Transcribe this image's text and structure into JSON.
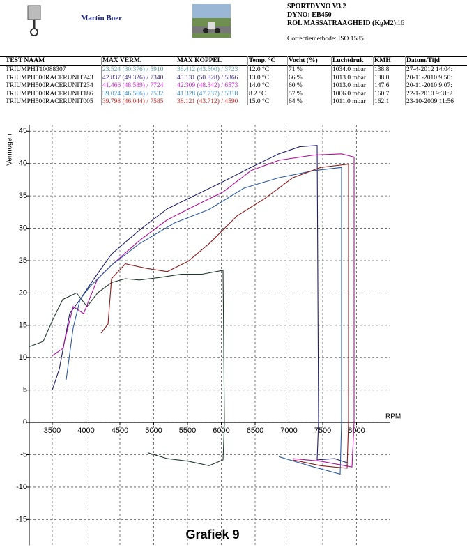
{
  "header": {
    "author": "Martin Boer",
    "software": "SPORTDYNO V3.2",
    "dyno": "DYNO: EB450",
    "inertia_label": "ROL MASSATRAAGHEID (KgM2):",
    "inertia_value": 16,
    "correction": "Correctiemethode: ISO 1585"
  },
  "table": {
    "columns": [
      "TEST NAAM",
      "MAX VERM.",
      "MAX KOPPEL",
      "Temp. °C",
      "Vocht (%)",
      "Luchtdruk",
      "KMH",
      "Datum/Tijd"
    ],
    "rows": [
      [
        "TRIUMPHT10088307",
        "23.524 (30.376) / 5910",
        "36.412 (43.500) / 3723",
        "12.0 °C",
        "71 %",
        "1034.0 mbar",
        "138.8",
        "27-4-2012 14:04:"
      ],
      [
        "TRIUMPH500RACERUNIT243",
        "42.837 (49.326) / 7340",
        "45.131 (50.828) / 5366",
        "13.0 °C",
        "66 %",
        "1013.0 mbar",
        "138.0",
        "20-11-2010 9:50:"
      ],
      [
        "TRIUMPH500RACERUNIT234",
        "41.466 (48.589) / 7724",
        "42.309 (48.342) / 6573",
        "14.0 °C",
        "60 %",
        "1013.0 mbar",
        "147.6",
        "20-11-2010 9:07:"
      ],
      [
        "TRIUMPH500RACERUNIT186",
        "39.024 (46.566) / 7532",
        "41.328 (47.737) / 5318",
        "8.2 °C",
        "57 %",
        "1006.0 mbar",
        "160.7",
        "22-1-2010 9:31:2"
      ],
      [
        "TRIUMPH500RACERUNIT005",
        "39.798 (46.044) / 7585",
        "38.121 (43.712) / 4590",
        "15.0 °C",
        "64 %",
        "1011.0 mbar",
        "162.1",
        "23-10-2009 11:56"
      ]
    ],
    "row_colors": [
      "#5f9ea0",
      "#3a2a80",
      "#cc22cc",
      "#3a90c8",
      "#cc2222"
    ]
  },
  "chart_data": {
    "type": "line",
    "title": "Grafiek 9",
    "y_label": "Vermogen",
    "x_label": "RPM",
    "xlim": [
      3160,
      8500
    ],
    "xticks": [
      3500,
      4000,
      4500,
      5000,
      5500,
      6000,
      6500,
      7000,
      7500,
      8000
    ],
    "ylim": [
      -19,
      46
    ],
    "yticks": [
      45,
      40,
      35,
      30,
      25,
      20,
      15,
      10,
      5,
      0,
      -5,
      -10,
      -15
    ],
    "grid": true,
    "series": [
      {
        "color": "#1f3a2a",
        "x": [
          3160,
          3366,
          3500,
          3655,
          3860,
          4015,
          4170,
          4376,
          4582,
          4789,
          5100,
          5407,
          5716,
          6026,
          6046,
          6026,
          5820,
          5510,
          5200,
          4912
        ],
        "values": [
          11.7,
          12.5,
          15.7,
          19,
          20,
          17.9,
          20,
          21.6,
          22.2,
          22,
          22.4,
          22.9,
          22.9,
          23.5,
          0,
          -5.8,
          -6.7,
          -6,
          -5.6,
          -4.7
        ]
      },
      {
        "color": "#20206a",
        "x": [
          3500,
          3603,
          3758,
          3912,
          4118,
          4376,
          4789,
          5200,
          5613,
          6026,
          6438,
          6851,
          7160,
          7418,
          7438,
          7418,
          7675,
          7881
        ],
        "values": [
          5,
          8.2,
          16.8,
          19,
          22.2,
          26,
          29.7,
          33,
          35.1,
          37.2,
          39.4,
          41.5,
          42.6,
          42.8,
          0,
          -5.8,
          -5.6,
          -6.3
        ]
      },
      {
        "color": "#b0109a",
        "x": [
          3500,
          3655,
          3809,
          3964,
          4170,
          4376,
          4789,
          5200,
          5613,
          6026,
          6438,
          6851,
          7366,
          7778,
          7964,
          7964,
          7933,
          7469,
          7057
        ],
        "values": [
          10.3,
          11.4,
          17.9,
          16.8,
          22.2,
          24.3,
          28.1,
          31.3,
          33.5,
          35.6,
          38.9,
          40.5,
          41.3,
          41.5,
          41,
          0,
          -6.9,
          -6,
          -5.6
        ]
      },
      {
        "color": "#2a5aa0",
        "x": [
          3706,
          3809,
          3912,
          4067,
          4376,
          4789,
          5304,
          5819,
          6335,
          6851,
          7366,
          7778,
          7778,
          7758,
          7366,
          6851
        ],
        "values": [
          6.6,
          14.6,
          19,
          21.1,
          24.3,
          27.6,
          30.8,
          32.9,
          36.2,
          37.8,
          38.9,
          39.4,
          0,
          -8,
          -6.9,
          -5.3
        ]
      },
      {
        "color": "#8a1a1a",
        "x": [
          4222,
          4325,
          4376,
          4582,
          4892,
          5200,
          5510,
          5819,
          6232,
          6644,
          7057,
          7469,
          7881,
          7881,
          7861,
          7469,
          7057
        ],
        "values": [
          13.8,
          15.2,
          22.2,
          24.5,
          23.8,
          23.3,
          24.9,
          27.6,
          31.9,
          34.6,
          37.8,
          39.4,
          39.9,
          0,
          -7.1,
          -6.7,
          -5.8
        ]
      }
    ]
  }
}
